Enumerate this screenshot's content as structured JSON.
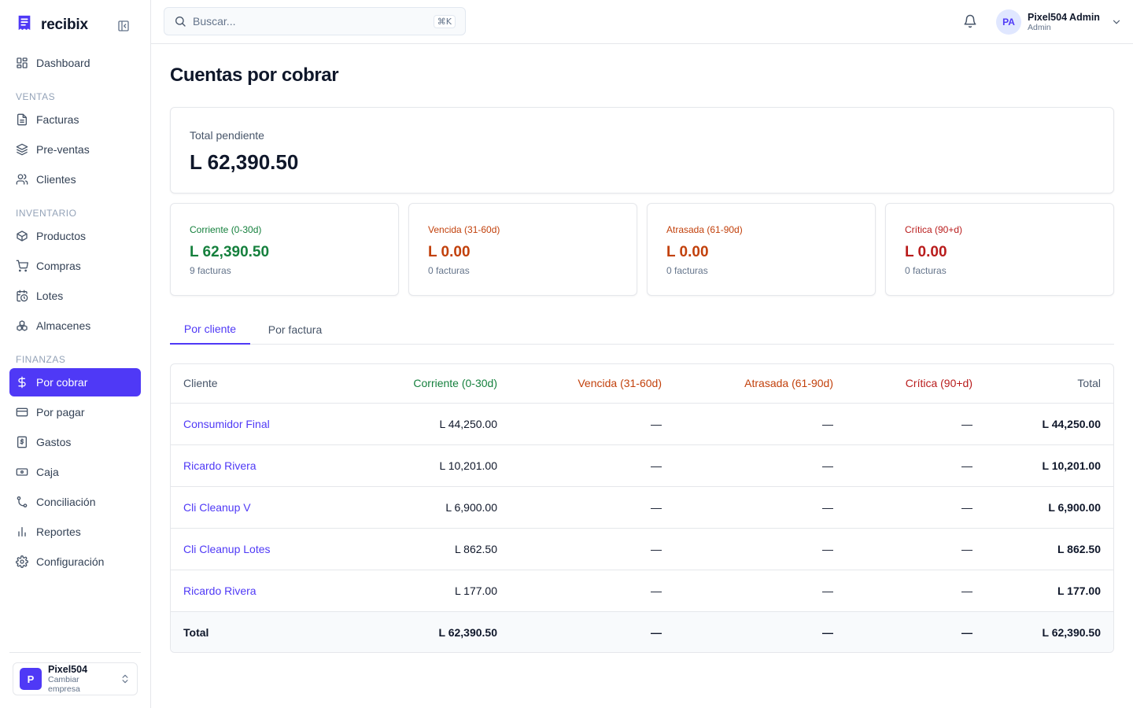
{
  "app": {
    "name": "recibix"
  },
  "sidebar": {
    "dashboard": "Dashboard",
    "sections": {
      "ventas": "VENTAS",
      "inventario": "INVENTARIO",
      "finanzas": "FINANZAS"
    },
    "items": {
      "facturas": "Facturas",
      "preventas": "Pre-ventas",
      "clientes": "Clientes",
      "productos": "Productos",
      "compras": "Compras",
      "lotes": "Lotes",
      "almacenes": "Almacenes",
      "por_cobrar": "Por cobrar",
      "por_pagar": "Por pagar",
      "gastos": "Gastos",
      "caja": "Caja",
      "conciliacion": "Conciliación",
      "reportes": "Reportes",
      "configuracion": "Configuración"
    },
    "company": {
      "initial": "P",
      "name": "Pixel504",
      "action": "Cambiar empresa"
    }
  },
  "topbar": {
    "search_placeholder": "Buscar...",
    "search_shortcut": "⌘K",
    "user": {
      "initials": "PA",
      "name": "Pixel504 Admin",
      "role": "Admin"
    }
  },
  "page": {
    "title": "Cuentas por cobrar",
    "total": {
      "label": "Total pendiente",
      "value": "L 62,390.50"
    },
    "buckets": [
      {
        "label": "Corriente (0-30d)",
        "value": "L 62,390.50",
        "count": "9 facturas",
        "color": "#15803d"
      },
      {
        "label": "Vencida (31-60d)",
        "value": "L 0.00",
        "count": "0 facturas",
        "color": "#c2410c"
      },
      {
        "label": "Atrasada (61-90d)",
        "value": "L 0.00",
        "count": "0 facturas",
        "color": "#c2410c"
      },
      {
        "label": "Crítica (90+d)",
        "value": "L 0.00",
        "count": "0 facturas",
        "color": "#b91c1c"
      }
    ],
    "tabs": {
      "by_client": "Por cliente",
      "by_invoice": "Por factura"
    }
  },
  "table": {
    "headers": {
      "cliente": "Cliente",
      "corriente": "Corriente (0-30d)",
      "vencida": "Vencida (31-60d)",
      "atrasada": "Atrasada (61-90d)",
      "critica": "Crítica (90+d)",
      "total": "Total"
    },
    "rows": [
      {
        "cliente": "Consumidor Final",
        "corriente": "L 44,250.00",
        "vencida": "—",
        "atrasada": "—",
        "critica": "—",
        "total": "L 44,250.00"
      },
      {
        "cliente": "Ricardo Rivera",
        "corriente": "L 10,201.00",
        "vencida": "—",
        "atrasada": "—",
        "critica": "—",
        "total": "L 10,201.00"
      },
      {
        "cliente": "Cli Cleanup V",
        "corriente": "L 6,900.00",
        "vencida": "—",
        "atrasada": "—",
        "critica": "—",
        "total": "L 6,900.00"
      },
      {
        "cliente": "Cli Cleanup Lotes",
        "corriente": "L 862.50",
        "vencida": "—",
        "atrasada": "—",
        "critica": "—",
        "total": "L 862.50"
      },
      {
        "cliente": "Ricardo Rivera",
        "corriente": "L 177.00",
        "vencida": "—",
        "atrasada": "—",
        "critica": "—",
        "total": "L 177.00"
      }
    ],
    "footer": {
      "label": "Total",
      "corriente": "L 62,390.50",
      "vencida": "—",
      "atrasada": "—",
      "critica": "—",
      "total": "L 62,390.50"
    }
  },
  "colors": {
    "accent": "#4f39f6",
    "corriente": "#15803d",
    "vencida": "#c2410c",
    "atrasada": "#c2410c",
    "critica": "#b91c1c"
  }
}
